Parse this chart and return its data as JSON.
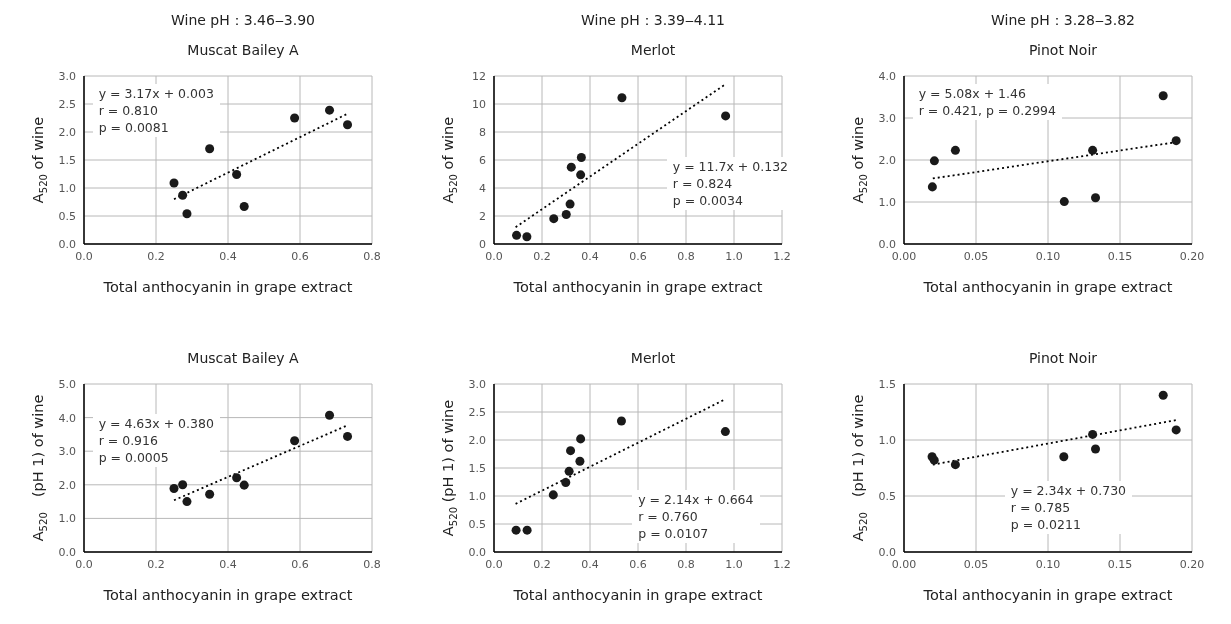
{
  "chart_data": [
    {
      "type": "scatter",
      "title": "Wine pH：3.46‒3.90",
      "subtitle": "Muscat Bailey A",
      "xlabel": "Total anthocyanin in grape extract",
      "ylabel": "A$_{520}$ of wine",
      "xlim": [
        0,
        0.8
      ],
      "xticks": [
        {
          "value": 0,
          "label": "0.0"
        },
        0.2,
        0.4,
        0.6,
        0.8
      ],
      "ylim": [
        0,
        3
      ],
      "yticks": [
        {
          "value": 0,
          "label": "0.0"
        },
        0.5,
        {
          "value": 1,
          "label": "1.0"
        },
        1.5,
        {
          "value": 2,
          "label": "2.0"
        },
        2.5,
        {
          "value": 3,
          "label": "3.0"
        }
      ],
      "grid": true,
      "marker": "circle",
      "annotations": [
        "y = 3.17x + 0.003",
        "r = 0.810",
        "p = 0.0081"
      ],
      "series": [
        {
          "color": "#1a1a1a",
          "x": [
            0.25,
            0.274,
            0.286,
            0.349,
            0.424,
            0.445,
            0.585,
            0.682,
            0.732
          ],
          "values": [
            1.09,
            0.87,
            0.54,
            1.7,
            1.24,
            0.67,
            2.25,
            2.39,
            2.13
          ]
        },
        {
          "type": "line",
          "color": "#000000",
          "line_style": "dotted",
          "marker": "none",
          "x": [
            0.25,
            0.73
          ],
          "values": [
            0.8,
            2.32
          ]
        }
      ]
    },
    {
      "type": "scatter",
      "title": "Wine pH：3.39‒4.11",
      "subtitle": "Merlot",
      "xlabel": "Total anthocyanin in grape extract",
      "ylabel": "A$_{520}$ of wine",
      "xlim": [
        0,
        1.2
      ],
      "xticks": [
        {
          "value": 0,
          "label": "0.0"
        },
        0.2,
        0.4,
        0.6,
        0.8,
        {
          "value": 1,
          "label": "1.0"
        },
        1.2
      ],
      "ylim": [
        0,
        12
      ],
      "yticks": [
        0,
        2,
        4,
        6,
        8,
        10,
        12
      ],
      "grid": true,
      "marker": "circle",
      "annotations": [
        "y = 11.7x + 0.132",
        "r = 0.824",
        "p = 0.0034"
      ],
      "series": [
        {
          "color": "#1a1a1a",
          "x": [
            0.094,
            0.137,
            0.249,
            0.301,
            0.317,
            0.322,
            0.361,
            0.364,
            0.533,
            0.965
          ],
          "values": [
            0.62,
            0.52,
            1.81,
            2.11,
            2.85,
            5.49,
            4.94,
            6.18,
            10.45,
            9.15
          ]
        },
        {
          "type": "line",
          "color": "#000000",
          "line_style": "dotted",
          "marker": "none",
          "x": [
            0.09,
            0.96
          ],
          "values": [
            1.2,
            11.36
          ]
        }
      ]
    },
    {
      "type": "scatter",
      "title": "Wine pH：3.28‒3.82",
      "subtitle": "Pinot Noir",
      "xlabel": "Total anthocyanin in grape extract",
      "ylabel": "A$_{520}$ of wine",
      "xlim": [
        0,
        0.2
      ],
      "xticks": [
        {
          "value": 0,
          "label": "0.00"
        },
        0.05,
        {
          "value": 0.1,
          "label": "0.10"
        },
        0.15,
        {
          "value": 0.2,
          "label": "0.20"
        }
      ],
      "ylim": [
        0,
        4
      ],
      "yticks": [
        {
          "value": 0,
          "label": "0.0"
        },
        {
          "value": 1,
          "label": "1.0"
        },
        {
          "value": 2,
          "label": "2.0"
        },
        {
          "value": 3,
          "label": "3.0"
        },
        {
          "value": 4,
          "label": "4.0"
        }
      ],
      "grid": true,
      "marker": "circle",
      "annotations": [
        "y = 5.08x + 1.46",
        "r = 0.421, p = 0.2994"
      ],
      "series": [
        {
          "color": "#1a1a1a",
          "x": [
            0.0197,
            0.0211,
            0.0357,
            0.1113,
            0.131,
            0.133,
            0.18,
            0.189
          ],
          "values": [
            1.36,
            1.98,
            2.23,
            1.01,
            2.23,
            1.1,
            3.53,
            2.46
          ]
        },
        {
          "type": "line",
          "color": "#000000",
          "line_style": "dotted",
          "marker": "none",
          "x": [
            0.02,
            0.19
          ],
          "values": [
            1.56,
            2.43
          ]
        }
      ]
    },
    {
      "type": "scatter",
      "title": "Muscat Bailey A",
      "xlabel": "Total anthocyanin in grape extract",
      "ylabel": "A$_{520}$　(pH 1) of wine",
      "xlim": [
        0,
        0.8
      ],
      "xticks": [
        {
          "value": 0,
          "label": "0.0"
        },
        0.2,
        0.4,
        0.6,
        0.8
      ],
      "ylim": [
        0,
        5
      ],
      "yticks": [
        {
          "value": 0,
          "label": "0.0"
        },
        {
          "value": 1,
          "label": "1.0"
        },
        {
          "value": 2,
          "label": "2.0"
        },
        {
          "value": 3,
          "label": "3.0"
        },
        {
          "value": 4,
          "label": "4.0"
        },
        {
          "value": 5,
          "label": "5.0"
        }
      ],
      "grid": true,
      "marker": "circle",
      "annotations": [
        "y = 4.63x + 0.380",
        "r = 0.916",
        "p = 0.0005"
      ],
      "series": [
        {
          "color": "#1a1a1a",
          "x": [
            0.25,
            0.274,
            0.286,
            0.349,
            0.424,
            0.445,
            0.585,
            0.682,
            0.732
          ],
          "values": [
            1.89,
            2.0,
            1.5,
            1.72,
            2.21,
            1.99,
            3.31,
            4.07,
            3.44
          ]
        },
        {
          "type": "line",
          "color": "#000000",
          "line_style": "dotted",
          "marker": "none",
          "x": [
            0.25,
            0.73
          ],
          "values": [
            1.54,
            3.76
          ]
        }
      ]
    },
    {
      "type": "scatter",
      "title": "Merlot",
      "xlabel": "Total anthocyanin in grape extract",
      "ylabel": "A$_{520}$ (pH 1) of wine",
      "xlim": [
        0,
        1.2
      ],
      "xticks": [
        {
          "value": 0,
          "label": "0.0"
        },
        0.2,
        0.4,
        0.6,
        0.8,
        {
          "value": 1,
          "label": "1.0"
        },
        1.2
      ],
      "ylim": [
        0,
        3
      ],
      "yticks": [
        {
          "value": 0,
          "label": "0.0"
        },
        0.5,
        {
          "value": 1,
          "label": "1.0"
        },
        1.5,
        {
          "value": 2,
          "label": "2.0"
        },
        2.5,
        {
          "value": 3,
          "label": "3.0"
        }
      ],
      "grid": true,
      "marker": "circle",
      "annotations": [
        "y = 2.14x + 0.664",
        "r = 0.760",
        "p = 0.0107"
      ],
      "series": [
        {
          "color": "#1a1a1a",
          "x": [
            0.092,
            0.138,
            0.247,
            0.299,
            0.313,
            0.319,
            0.358,
            0.361,
            0.531,
            0.964
          ],
          "values": [
            0.39,
            0.39,
            1.02,
            1.24,
            1.44,
            1.81,
            1.62,
            2.02,
            2.34,
            2.15
          ]
        },
        {
          "type": "line",
          "color": "#000000",
          "line_style": "dotted",
          "marker": "none",
          "x": [
            0.09,
            0.96
          ],
          "values": [
            0.86,
            2.72
          ]
        }
      ]
    },
    {
      "type": "scatter",
      "title": "Pinot Noir",
      "xlabel": "Total anthocyanin in grape extract",
      "ylabel": "A$_{520}$　(pH 1) of wine",
      "xlim": [
        0,
        0.2
      ],
      "xticks": [
        {
          "value": 0,
          "label": "0.00"
        },
        0.05,
        {
          "value": 0.1,
          "label": "0.10"
        },
        0.15,
        {
          "value": 0.2,
          "label": "0.20"
        }
      ],
      "ylim": [
        0,
        1.5
      ],
      "yticks": [
        {
          "value": 0,
          "label": "0.0"
        },
        0.5,
        {
          "value": 1,
          "label": "1.0"
        },
        1.5
      ],
      "grid": true,
      "marker": "circle",
      "annotations": [
        "y = 2.34x + 0.730",
        "r = 0.785",
        "p = 0.0211"
      ],
      "series": [
        {
          "color": "#1a1a1a",
          "x": [
            0.0195,
            0.021,
            0.0357,
            0.111,
            0.131,
            0.133,
            0.18,
            0.189
          ],
          "values": [
            0.85,
            0.82,
            0.78,
            0.85,
            1.05,
            0.92,
            1.4,
            1.09
          ]
        },
        {
          "type": "line",
          "color": "#000000",
          "line_style": "dotted",
          "marker": "none",
          "x": [
            0.02,
            0.19
          ],
          "values": [
            0.78,
            1.18
          ]
        }
      ]
    }
  ]
}
